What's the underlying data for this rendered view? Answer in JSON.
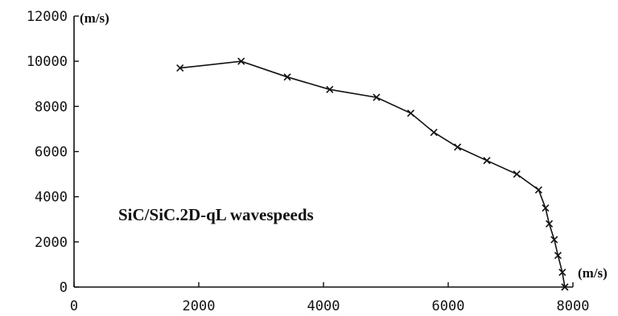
{
  "chart_data": {
    "type": "line",
    "title": "",
    "xlabel": "(m/s)",
    "ylabel": "(m/s)",
    "annotation": "SiC/SiC.2D-qL wavespeeds",
    "xlim": [
      0,
      8000
    ],
    "ylim": [
      0,
      12000
    ],
    "x_ticks": [
      "0",
      "2000",
      "4000",
      "6000",
      "8000"
    ],
    "y_ticks": [
      "0",
      "2000",
      "4000",
      "6000",
      "8000",
      "10000",
      "12000"
    ],
    "grid": false,
    "legend": "none",
    "marker": "x",
    "color": "#111111",
    "series": [
      {
        "points": [
          [
            1700,
            9700
          ],
          [
            2680,
            10000
          ],
          [
            3420,
            9300
          ],
          [
            4100,
            8750
          ],
          [
            4850,
            8400
          ],
          [
            5400,
            7700
          ],
          [
            5770,
            6850
          ],
          [
            6150,
            6200
          ],
          [
            6620,
            5600
          ],
          [
            7100,
            5000
          ],
          [
            7450,
            4300
          ],
          [
            7560,
            3500
          ],
          [
            7620,
            2800
          ],
          [
            7700,
            2100
          ],
          [
            7760,
            1400
          ],
          [
            7830,
            650
          ],
          [
            7870,
            0
          ]
        ]
      }
    ]
  }
}
